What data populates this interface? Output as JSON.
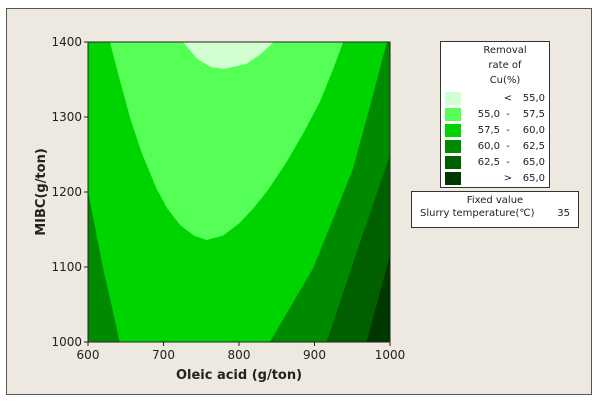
{
  "chart_data": {
    "type": "contour",
    "xlabel": "Oleic acid (g/ton)",
    "ylabel": "MIBC(g/ton)",
    "xlim": [
      600,
      1000
    ],
    "ylim": [
      1000,
      1400
    ],
    "xticks": [
      "600",
      "700",
      "800",
      "900",
      "1000"
    ],
    "yticks": [
      "1000",
      "1100",
      "1200",
      "1300",
      "1400"
    ],
    "legend": {
      "title": [
        "Removal",
        "rate of",
        "Cu(%)"
      ],
      "position": "right",
      "levels": [
        {
          "lo": "",
          "op": "<",
          "hi": "55,0",
          "color": "#d2ffd2"
        },
        {
          "lo": "55,0",
          "op": "-",
          "hi": "57,5",
          "color": "#55ff55"
        },
        {
          "lo": "57,5",
          "op": "-",
          "hi": "60,0",
          "color": "#00d400"
        },
        {
          "lo": "60,0",
          "op": "-",
          "hi": "62,5",
          "color": "#008a00"
        },
        {
          "lo": "62,5",
          "op": "-",
          "hi": "65,0",
          "color": "#006000"
        },
        {
          "lo": "",
          "op": ">",
          "hi": "65,0",
          "color": "#003800"
        }
      ]
    },
    "background_level": 2,
    "regions": [
      {
        "level": 3,
        "points": [
          [
            600,
            1200
          ],
          [
            610,
            1150
          ],
          [
            620,
            1098
          ],
          [
            631,
            1050
          ],
          [
            642,
            1000
          ],
          [
            600,
            1000
          ]
        ]
      },
      {
        "level": 3,
        "points": [
          [
            841,
            1000
          ],
          [
            870,
            1050
          ],
          [
            898,
            1098
          ],
          [
            925,
            1165
          ],
          [
            951,
            1231
          ],
          [
            975,
            1320
          ],
          [
            996,
            1400
          ],
          [
            1000,
            1400
          ],
          [
            1000,
            1000
          ]
        ]
      },
      {
        "level": 4,
        "points": [
          [
            916,
            1000
          ],
          [
            936,
            1060
          ],
          [
            956,
            1120
          ],
          [
            978,
            1185
          ],
          [
            1000,
            1249
          ],
          [
            1000,
            1000
          ]
        ]
      },
      {
        "level": 5,
        "points": [
          [
            969,
            1000
          ],
          [
            987,
            1067
          ],
          [
            1000,
            1116
          ],
          [
            1000,
            1000
          ]
        ]
      },
      {
        "level": 1,
        "points": [
          [
            629,
            1400
          ],
          [
            642,
            1350
          ],
          [
            656,
            1298
          ],
          [
            672,
            1250
          ],
          [
            691,
            1204
          ],
          [
            705,
            1178
          ],
          [
            722,
            1156
          ],
          [
            740,
            1142
          ],
          [
            757,
            1136
          ],
          [
            779,
            1142
          ],
          [
            800,
            1158
          ],
          [
            819,
            1178
          ],
          [
            840,
            1205
          ],
          [
            863,
            1240
          ],
          [
            885,
            1278
          ],
          [
            907,
            1320
          ],
          [
            924,
            1362
          ],
          [
            938,
            1400
          ]
        ]
      },
      {
        "level": 0,
        "points": [
          [
            726,
            1400
          ],
          [
            744,
            1378
          ],
          [
            762,
            1367
          ],
          [
            780,
            1364
          ],
          [
            810,
            1371
          ],
          [
            830,
            1385
          ],
          [
            846,
            1400
          ]
        ]
      }
    ]
  },
  "fixed_value": {
    "title": "Fixed value",
    "label": "Slurry temperature(℃)",
    "value": "35"
  }
}
